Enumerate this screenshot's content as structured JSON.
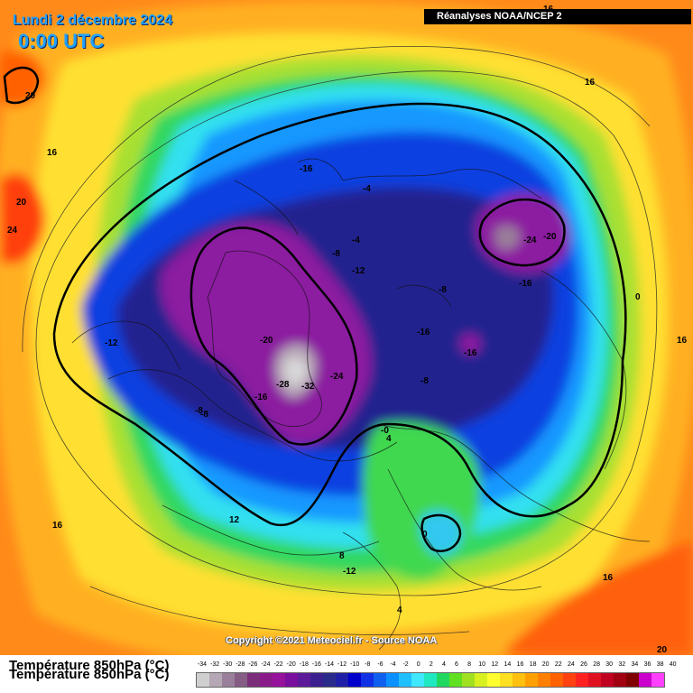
{
  "header": {
    "date": "Lundi 2 décembre 2024",
    "time": "0:00 UTC",
    "source": "Réanalyses NOAA/NCEP 2"
  },
  "footer": {
    "copyright": "Copyright ©2021 Meteociel.fr - Source NOAA",
    "legend_title": "Température 850hPa (°C)"
  },
  "legend": {
    "values": [
      "-34",
      "-32",
      "-30",
      "-28",
      "-26",
      "-24",
      "-22",
      "-20",
      "-18",
      "-16",
      "-14",
      "-12",
      "-10",
      "-8",
      "-6",
      "-4",
      "-2",
      "0",
      "2",
      "4",
      "6",
      "8",
      "10",
      "12",
      "14",
      "16",
      "18",
      "20",
      "22",
      "24",
      "26",
      "28",
      "30",
      "32",
      "34",
      "36",
      "38",
      "40"
    ],
    "colors": [
      "#cfcfcf",
      "#b4a8b4",
      "#9a7f9a",
      "#845c84",
      "#7a2e7a",
      "#8a1a8a",
      "#96119c",
      "#7a0e9e",
      "#5c1a9a",
      "#3b1f8f",
      "#2a2a8a",
      "#1e1ea6",
      "#0000cc",
      "#1030e6",
      "#1060f0",
      "#0a90ff",
      "#20c0ff",
      "#40e8ff",
      "#20e8c0",
      "#20d860",
      "#60e020",
      "#a0e020",
      "#d8f020",
      "#ffff30",
      "#ffe020",
      "#ffc010",
      "#ffa000",
      "#ff8000",
      "#ff6000",
      "#ff4010",
      "#ff2020",
      "#e01020",
      "#c00020",
      "#a00010",
      "#800000",
      "#cc00cc",
      "#ff40ff"
    ]
  },
  "map_labels": [
    {
      "text": "20"
    },
    {
      "text": "16"
    },
    {
      "text": "20"
    },
    {
      "text": "24"
    },
    {
      "text": "-16"
    },
    {
      "text": "-4"
    },
    {
      "text": "-4"
    },
    {
      "text": "-8"
    },
    {
      "text": "-12"
    },
    {
      "text": "-24"
    },
    {
      "text": "-20"
    },
    {
      "text": "-16"
    },
    {
      "text": "-8"
    },
    {
      "text": "16"
    },
    {
      "text": "0"
    },
    {
      "text": "16"
    },
    {
      "text": "-12"
    },
    {
      "text": "-20"
    },
    {
      "text": "-16"
    },
    {
      "text": "-16"
    },
    {
      "text": "-28"
    },
    {
      "text": "-32"
    },
    {
      "text": "-24"
    },
    {
      "text": "-8"
    },
    {
      "text": "-16"
    },
    {
      "text": "-8"
    },
    {
      "text": "-8"
    },
    {
      "text": "-0"
    },
    {
      "text": "4"
    },
    {
      "text": "0"
    },
    {
      "text": "12"
    },
    {
      "text": "16"
    },
    {
      "text": "8"
    },
    {
      "text": "-12"
    },
    {
      "text": "4"
    },
    {
      "text": "16"
    },
    {
      "text": "20"
    },
    {
      "text": "16"
    }
  ]
}
